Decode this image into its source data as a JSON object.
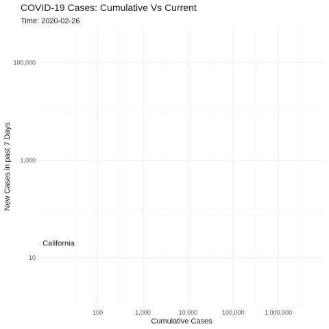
{
  "chart_data": {
    "type": "scatter",
    "title": "COVID-19 Cases: Cumulative Vs Current",
    "subtitle": "Time: 2020-02-26",
    "xlabel": "Cumulative Cases",
    "ylabel": "New Cases in past 7 Days",
    "x_scale": "log10",
    "y_scale": "log10",
    "xlim": [
      5,
      10000000
    ],
    "ylim": [
      1,
      500000
    ],
    "x_ticks": [
      {
        "value": 100,
        "label": "100"
      },
      {
        "value": 1000,
        "label": "1,000"
      },
      {
        "value": 10000,
        "label": "10,000"
      },
      {
        "value": 100000,
        "label": "100,000"
      },
      {
        "value": 1000000,
        "label": "1,000,000"
      }
    ],
    "y_ticks": [
      {
        "value": 10,
        "label": "10"
      },
      {
        "value": 1000,
        "label": "1,000"
      },
      {
        "value": 100000,
        "label": "100,000"
      }
    ],
    "grid": true,
    "legend": "none",
    "points": [
      {
        "label": "California",
        "x": 6,
        "y": 20
      }
    ],
    "colors": {
      "grid": "#ebebeb",
      "text": "#1a1a1a",
      "tick": "#4d4d4d"
    }
  }
}
